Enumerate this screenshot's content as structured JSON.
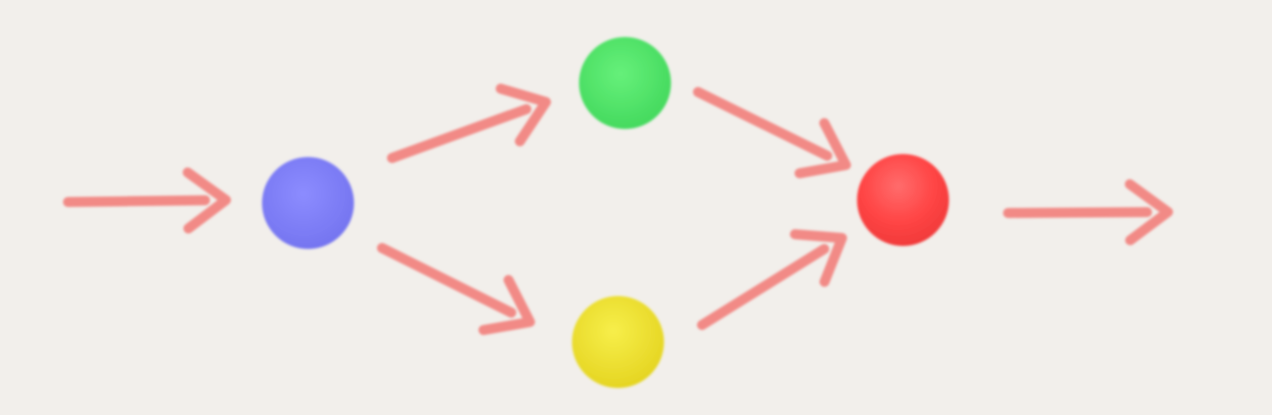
{
  "diagram": {
    "background": "#f2efeb",
    "arrow_color": "#f28a86",
    "nodes": [
      {
        "id": "blue",
        "color": "#8080f6",
        "icon": "blue-node-circle"
      },
      {
        "id": "green",
        "color": "#52e56a",
        "icon": "green-node-circle"
      },
      {
        "id": "yellow",
        "color": "#efe32e",
        "icon": "yellow-node-circle"
      },
      {
        "id": "red",
        "color": "#ff4444",
        "icon": "red-node-circle"
      }
    ],
    "edges": [
      {
        "from": "input",
        "to": "blue"
      },
      {
        "from": "blue",
        "to": "green"
      },
      {
        "from": "blue",
        "to": "yellow"
      },
      {
        "from": "green",
        "to": "red"
      },
      {
        "from": "yellow",
        "to": "red"
      },
      {
        "from": "red",
        "to": "output"
      }
    ]
  }
}
